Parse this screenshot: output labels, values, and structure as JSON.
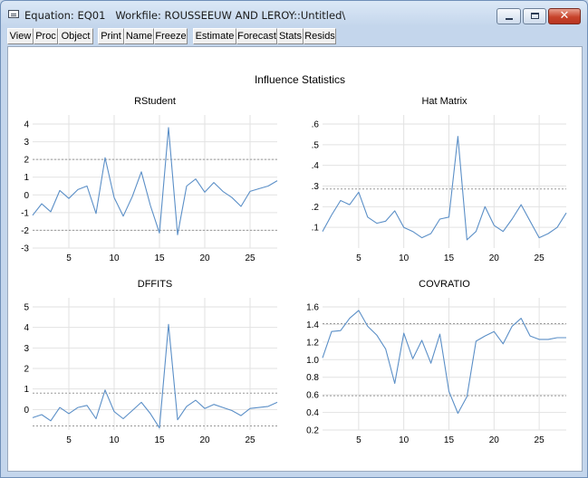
{
  "window": {
    "title": "Equation: EQ01   Workfile: ROUSSEEUW AND LEROY::Untitled\\",
    "minimize_icon": "minimize-icon",
    "maximize_icon": "maximize-icon",
    "close_icon": "close-icon",
    "close_glyph": "✕"
  },
  "toolbar": [
    {
      "key": "view",
      "label": "View"
    },
    {
      "key": "proc",
      "label": "Proc"
    },
    {
      "key": "object",
      "label": "Object"
    },
    {
      "key": "print",
      "label": "Print"
    },
    {
      "key": "name",
      "label": "Name"
    },
    {
      "key": "freeze",
      "label": "Freeze"
    },
    {
      "key": "estimate",
      "label": "Estimate"
    },
    {
      "key": "forecast",
      "label": "Forecast"
    },
    {
      "key": "stats",
      "label": "Stats"
    },
    {
      "key": "resids",
      "label": "Resids"
    }
  ],
  "figure_title": "Influence Statistics",
  "colors": {
    "line": "#5b8fc7",
    "grid": "#e2e2e2",
    "reference": "#999999",
    "tick_text": "#000000"
  },
  "chart_data": [
    {
      "type": "line",
      "title": "RStudent",
      "xlabel": "",
      "ylabel": "",
      "x": [
        1,
        2,
        3,
        4,
        5,
        6,
        7,
        8,
        9,
        10,
        11,
        12,
        13,
        14,
        15,
        16,
        17,
        18,
        19,
        20,
        21,
        22,
        23,
        24,
        25,
        26,
        27,
        28
      ],
      "values": [
        -1.15,
        -0.5,
        -0.95,
        0.25,
        -0.2,
        0.3,
        0.5,
        -1.05,
        2.1,
        -0.15,
        -1.2,
        -0.1,
        1.3,
        -0.6,
        -2.15,
        3.8,
        -2.25,
        0.5,
        0.9,
        0.15,
        0.7,
        0.2,
        -0.15,
        -0.65,
        0.2,
        0.35,
        0.5,
        0.8
      ],
      "xlim": [
        1,
        28
      ],
      "ylim": [
        -3,
        4
      ],
      "xticks": [
        5,
        10,
        15,
        20,
        25
      ],
      "yticks": [
        -3,
        -2,
        -1,
        0,
        1,
        2,
        3,
        4
      ],
      "ytick_labels": [
        "-3",
        "-2",
        "-1",
        "0",
        "1",
        "2",
        "3",
        "4"
      ],
      "reference_lines": [
        2,
        -2
      ],
      "grid": true
    },
    {
      "type": "line",
      "title": "Hat Matrix",
      "xlabel": "",
      "ylabel": "",
      "x": [
        1,
        2,
        3,
        4,
        5,
        6,
        7,
        8,
        9,
        10,
        11,
        12,
        13,
        14,
        15,
        16,
        17,
        18,
        19,
        20,
        21,
        22,
        23,
        24,
        25,
        26,
        27,
        28
      ],
      "values": [
        0.08,
        0.16,
        0.23,
        0.21,
        0.27,
        0.15,
        0.12,
        0.13,
        0.18,
        0.1,
        0.08,
        0.05,
        0.07,
        0.14,
        0.15,
        0.54,
        0.04,
        0.08,
        0.2,
        0.11,
        0.08,
        0.14,
        0.21,
        0.13,
        0.05,
        0.07,
        0.1,
        0.17
      ],
      "xlim": [
        1,
        28
      ],
      "ylim": [
        0,
        0.6
      ],
      "xticks": [
        5,
        10,
        15,
        20,
        25
      ],
      "yticks": [
        0.1,
        0.2,
        0.3,
        0.4,
        0.5,
        0.6
      ],
      "ytick_labels": [
        ".1",
        ".2",
        ".3",
        ".4",
        ".5",
        ".6"
      ],
      "reference_lines": [
        0.286
      ],
      "grid": true
    },
    {
      "type": "line",
      "title": "DFFITS",
      "xlabel": "",
      "ylabel": "",
      "x": [
        1,
        2,
        3,
        4,
        5,
        6,
        7,
        8,
        9,
        10,
        11,
        12,
        13,
        14,
        15,
        16,
        17,
        18,
        19,
        20,
        21,
        22,
        23,
        24,
        25,
        26,
        27,
        28
      ],
      "values": [
        -0.4,
        -0.25,
        -0.55,
        0.1,
        -0.2,
        0.1,
        0.2,
        -0.45,
        0.95,
        -0.1,
        -0.45,
        -0.05,
        0.35,
        -0.2,
        -0.9,
        4.15,
        -0.5,
        0.15,
        0.45,
        0.05,
        0.25,
        0.1,
        -0.05,
        -0.3,
        0.05,
        0.1,
        0.15,
        0.35
      ],
      "xlim": [
        1,
        28
      ],
      "ylim": [
        -1,
        5
      ],
      "xticks": [
        5,
        10,
        15,
        20,
        25
      ],
      "yticks": [
        0,
        1,
        2,
        3,
        4,
        5
      ],
      "ytick_labels": [
        "0",
        "1",
        "2",
        "3",
        "4",
        "5"
      ],
      "reference_lines": [
        0.8,
        -0.8
      ],
      "grid": true
    },
    {
      "type": "line",
      "title": "COVRATIO",
      "xlabel": "",
      "ylabel": "",
      "x": [
        1,
        2,
        3,
        4,
        5,
        6,
        7,
        8,
        9,
        10,
        11,
        12,
        13,
        14,
        15,
        16,
        17,
        18,
        19,
        20,
        21,
        22,
        23,
        24,
        25,
        26,
        27,
        28
      ],
      "values": [
        1.02,
        1.32,
        1.33,
        1.47,
        1.56,
        1.38,
        1.28,
        1.12,
        0.73,
        1.3,
        1.01,
        1.22,
        0.96,
        1.29,
        0.64,
        0.39,
        0.58,
        1.21,
        1.27,
        1.32,
        1.18,
        1.38,
        1.47,
        1.27,
        1.23,
        1.23,
        1.25,
        1.25
      ],
      "xlim": [
        1,
        28
      ],
      "ylim": [
        0.2,
        1.6
      ],
      "xticks": [
        5,
        10,
        15,
        20,
        25
      ],
      "yticks": [
        0.2,
        0.4,
        0.6,
        0.8,
        1.0,
        1.2,
        1.4,
        1.6
      ],
      "ytick_labels": [
        "0.2",
        "0.4",
        "0.6",
        "0.8",
        "1.0",
        "1.2",
        "1.4",
        "1.6"
      ],
      "reference_lines": [
        1.41,
        0.59
      ],
      "grid": true
    }
  ]
}
